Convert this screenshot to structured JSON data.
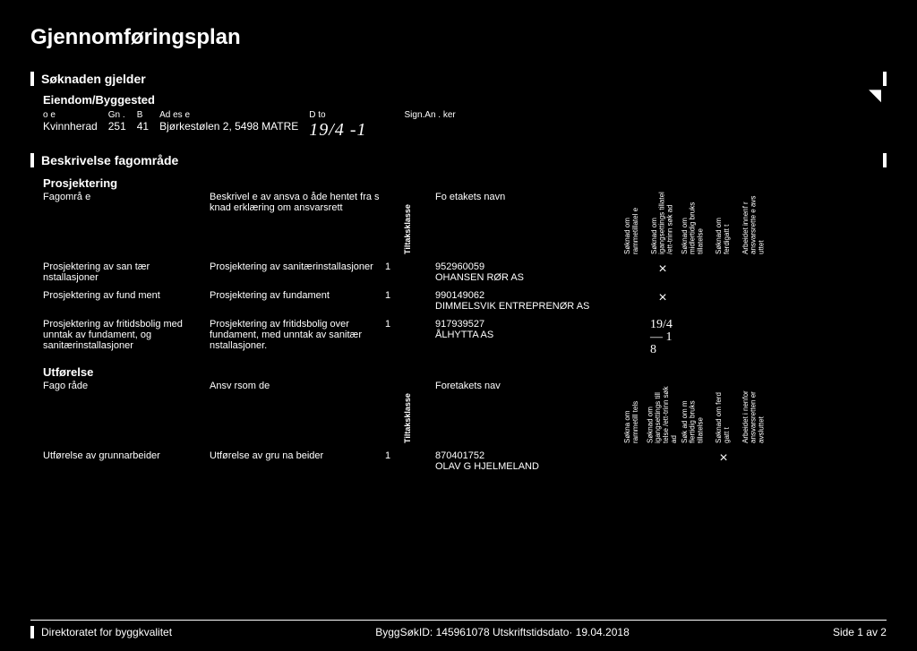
{
  "title": "Gjennomføringsplan",
  "soknaden_gjelder": "Søknaden gjelder",
  "eiendom_label": "Eiendom/Byggested",
  "eiendom": {
    "kommune_lbl": "o   e",
    "kommune": "Kvinnherad",
    "gnr_lbl": "Gn .",
    "gnr": "251",
    "bnr_lbl": "B",
    "bnr": "41",
    "adresse_lbl": "Ad es e",
    "adresse": "Bjørkestølen 2, 5498 MATRE",
    "dato_lbl": "D to",
    "dato": "19/4 -1",
    "sign_lbl": "Sign.An .  ker"
  },
  "beskrivelse_header": "Beskrivelse fagområde",
  "prosjektering_title": "Prosjektering",
  "col": {
    "fag": "Fagområ e",
    "besk": "Beskrivel e av ansva o  åde hentet fra s knad erklæring om ansvarsrett",
    "tiltak": "Tiltaksklasse",
    "foretak": "Fo etakets navn",
    "v1": "Søknad om rammetillatel e",
    "v2": "Søknad om igangsettings tillatel /ett-trinn søk ad",
    "v3": "Søknad om midlertidig bruks tillatelse",
    "v4": "Søknad om ferdigatt t",
    "v5": "Arbeidet innenf r ansvarsrette e avs uttet"
  },
  "prosjektering_rows": [
    {
      "fag": "Prosjektering av san tær nstallasjoner",
      "besk": "Prosjektering av sanitærinstallasjoner",
      "kl": "1",
      "foretak": "952960059\nOHANSEN RØR AS",
      "m2": "×"
    },
    {
      "fag": "Prosjektering av fund ment",
      "besk": "Prosjektering av fundament",
      "kl": "1",
      "foretak": "990149062\nDIMMELSVIK ENTREPRENØR AS",
      "m2": "×"
    },
    {
      "fag": "Prosjektering av fritidsbolig med unntak av fundament, og sanitærinstallasjoner",
      "besk": "Prosjektering av fritidsbolig over fundament, med unntak av sanitær nstallasjoner.",
      "kl": "1",
      "foretak": "917939527\nÅLHYTTA AS",
      "sig": "19/4\n— 1 8"
    }
  ],
  "utforelse_title": "Utførelse",
  "col2": {
    "fag": "Fago råde",
    "besk": "Ansv rsom  de",
    "tiltak": "Tiltaksklasse",
    "foretak": "Foretakets nav",
    "v1": "Søkna om rammetill tels",
    "v2": "Søknad om igangsettings till telse /ett-trinn søk ad",
    "v3": "Søk ad om m flertidig bruks tillatelse",
    "v4": "Søknad om ferd gatt t",
    "v5": "Arbeidet i nenfor ansvarsretten er avsluttet"
  },
  "utforelse_rows": [
    {
      "fag": "Utførelse av grunnarbeider",
      "besk": "Utførelse av gru na beider",
      "kl": "1",
      "foretak": "870401752\nOLAV G HJELMELAND",
      "m4": "×"
    }
  ],
  "footer_left": "Direktoratet for byggkvalitet",
  "footer_mid": "ByggSøkID: 145961078 Utskriftstidsdato· 19.04.2018",
  "footer_right": "Side 1 av 2"
}
